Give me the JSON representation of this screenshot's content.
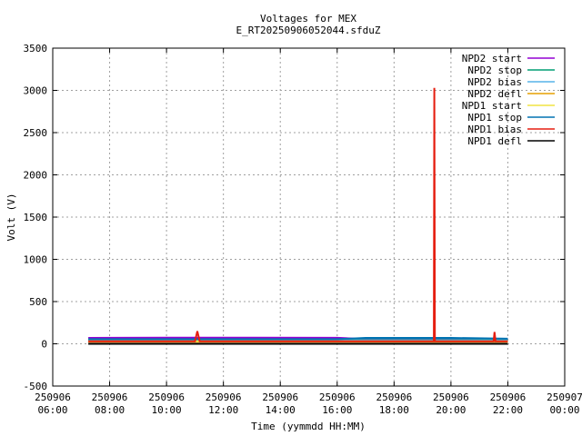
{
  "chart_data": {
    "type": "line",
    "title": "Voltages for MEX",
    "subtitle": "E_RT20250906052044.sfduZ",
    "xlabel": "Time (yymmdd HH:MM)",
    "ylabel": "Volt (V)",
    "xlim": [
      "2025-09-06 06:00",
      "2025-09-07 00:00"
    ],
    "ylim": [
      -500,
      3500
    ],
    "grid": true,
    "legend_position": "top-right",
    "x_ticks": [
      {
        "date": "250906",
        "time": "06:00"
      },
      {
        "date": "250906",
        "time": "08:00"
      },
      {
        "date": "250906",
        "time": "10:00"
      },
      {
        "date": "250906",
        "time": "12:00"
      },
      {
        "date": "250906",
        "time": "14:00"
      },
      {
        "date": "250906",
        "time": "16:00"
      },
      {
        "date": "250906",
        "time": "18:00"
      },
      {
        "date": "250906",
        "time": "20:00"
      },
      {
        "date": "250906",
        "time": "22:00"
      },
      {
        "date": "250907",
        "time": "00:00"
      }
    ],
    "y_ticks": [
      "3500",
      "3000",
      "2500",
      "2000",
      "1500",
      "1000",
      "500",
      "0",
      "-500"
    ],
    "y_tick_values": [
      3500,
      3000,
      2500,
      2000,
      1500,
      1000,
      500,
      0,
      -500
    ],
    "series": [
      {
        "name": "NPD2 start",
        "color": "#9400d3",
        "x": [
          "2025-09-06 07:15",
          "2025-09-06 10:00",
          "2025-09-06 13:00",
          "2025-09-06 16:00",
          "2025-09-06 17:00",
          "2025-09-06 20:00",
          "2025-09-06 22:00"
        ],
        "y": [
          70,
          72,
          73,
          71,
          55,
          50,
          50
        ]
      },
      {
        "name": "NPD2 stop",
        "color": "#009e73",
        "x": [
          "2025-09-06 07:15",
          "2025-09-06 22:00"
        ],
        "y": [
          45,
          45
        ]
      },
      {
        "name": "NPD2 bias",
        "color": "#56b4e9",
        "x": [
          "2025-09-06 07:15",
          "2025-09-06 22:00"
        ],
        "y": [
          40,
          40
        ]
      },
      {
        "name": "NPD2 defl",
        "color": "#e69f00",
        "x": [
          "2025-09-06 07:15",
          "2025-09-06 22:00"
        ],
        "y": [
          25,
          25
        ]
      },
      {
        "name": "NPD1 start",
        "color": "#f0e442",
        "x": [
          "2025-09-06 07:15",
          "2025-09-06 22:00"
        ],
        "y": [
          30,
          30
        ]
      },
      {
        "name": "NPD1 stop",
        "color": "#0072b2",
        "x": [
          "2025-09-06 07:15",
          "2025-09-06 16:00",
          "2025-09-06 17:00",
          "2025-09-06 20:00",
          "2025-09-06 22:00"
        ],
        "y": [
          55,
          55,
          70,
          70,
          60
        ]
      },
      {
        "name": "NPD1 bias",
        "color": "#e51e10",
        "x": [
          "2025-09-06 07:15",
          "2025-09-06 11:00",
          "2025-09-06 11:05",
          "2025-09-06 11:10",
          "2025-09-06 19:24",
          "2025-09-06 19:25",
          "2025-09-06 19:26",
          "2025-09-06 21:30",
          "2025-09-06 21:32",
          "2025-09-06 21:34",
          "2025-09-06 22:00"
        ],
        "y": [
          30,
          30,
          150,
          30,
          30,
          3030,
          30,
          30,
          140,
          30,
          30
        ]
      },
      {
        "name": "NPD1 defl",
        "color": "#000000",
        "x": [
          "2025-09-06 07:15",
          "2025-09-06 22:00"
        ],
        "y": [
          0,
          0
        ]
      }
    ]
  }
}
